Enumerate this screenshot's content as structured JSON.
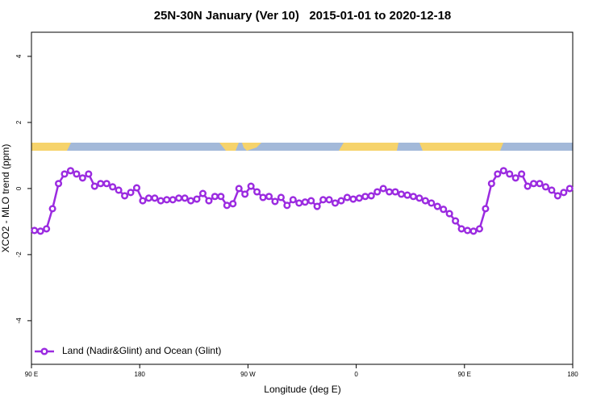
{
  "chart_data": {
    "type": "line",
    "title": "25N-30N January (Ver 10)   2015-01-01 to 2020-12-18",
    "xlabel": "Longitude (deg E)",
    "ylabel": "XCO2 - MLO trend (ppm)",
    "x": [
      92.5,
      97.5,
      102.5,
      107.5,
      112.5,
      117.5,
      122.5,
      127.5,
      132.5,
      137.5,
      142.5,
      147.5,
      152.5,
      157.5,
      162.5,
      167.5,
      172.5,
      177.5,
      182.5,
      187.5,
      192.5,
      197.5,
      202.5,
      207.5,
      212.5,
      217.5,
      222.5,
      227.5,
      232.5,
      237.5,
      242.5,
      247.5,
      252.5,
      257.5,
      262.5,
      267.5,
      272.5,
      277.5,
      282.5,
      287.5,
      292.5,
      297.5,
      302.5,
      307.5,
      312.5,
      317.5,
      322.5,
      327.5,
      332.5,
      337.5,
      342.5,
      347.5,
      352.5,
      357.5,
      362.5,
      367.5,
      372.5,
      377.5,
      382.5,
      387.5,
      392.5,
      397.5,
      402.5,
      407.5,
      412.5,
      417.5,
      422.5,
      427.5,
      432.5,
      437.5,
      442.5,
      447.5,
      452.5,
      457.5,
      462.5,
      467.5,
      472.5,
      477.5,
      482.5,
      487.5,
      492.5,
      497.5,
      502.5,
      507.5,
      512.5,
      517.5,
      522.5,
      527.5,
      532.5,
      537.5
    ],
    "series": [
      {
        "name": "Land (Nadir&Glint) and Ocean (Glint)",
        "color": "#9b2be0",
        "values": [
          -1.27,
          -1.29,
          -1.22,
          -0.61,
          0.15,
          0.44,
          0.54,
          0.44,
          0.32,
          0.44,
          0.07,
          0.15,
          0.15,
          0.05,
          -0.05,
          -0.22,
          -0.12,
          0.02,
          -0.37,
          -0.29,
          -0.29,
          -0.37,
          -0.34,
          -0.34,
          -0.29,
          -0.29,
          -0.37,
          -0.32,
          -0.15,
          -0.37,
          -0.24,
          -0.24,
          -0.51,
          -0.46,
          0.0,
          -0.17,
          0.07,
          -0.1,
          -0.27,
          -0.24,
          -0.39,
          -0.27,
          -0.51,
          -0.34,
          -0.44,
          -0.41,
          -0.37,
          -0.54,
          -0.34,
          -0.34,
          -0.44,
          -0.37,
          -0.27,
          -0.32,
          -0.29,
          -0.24,
          -0.22,
          -0.1,
          0.0,
          -0.1,
          -0.1,
          -0.17,
          -0.2,
          -0.24,
          -0.29,
          -0.37,
          -0.44,
          -0.54,
          -0.63,
          -0.76,
          -0.98,
          -1.22,
          -1.27,
          -1.29,
          -1.22,
          -0.61,
          0.15,
          0.44,
          0.54,
          0.44,
          0.32,
          0.44,
          0.07,
          0.15,
          0.15,
          0.05,
          -0.05,
          -0.22,
          -0.12,
          0.0
        ]
      }
    ],
    "xlim": [
      90,
      540
    ],
    "xticks": [
      {
        "value": 90,
        "label": "90 E"
      },
      180,
      {
        "value": 270,
        "label": "90 W"
      },
      {
        "value": 360,
        "label": "0"
      },
      {
        "value": 450,
        "label": "90 E"
      },
      {
        "value": 540,
        "label": "180"
      }
    ],
    "ylim": [
      -5.32,
      4.73
    ],
    "yticks": [
      4,
      2,
      0,
      -2,
      -4
    ],
    "legend": "bottom-left"
  }
}
